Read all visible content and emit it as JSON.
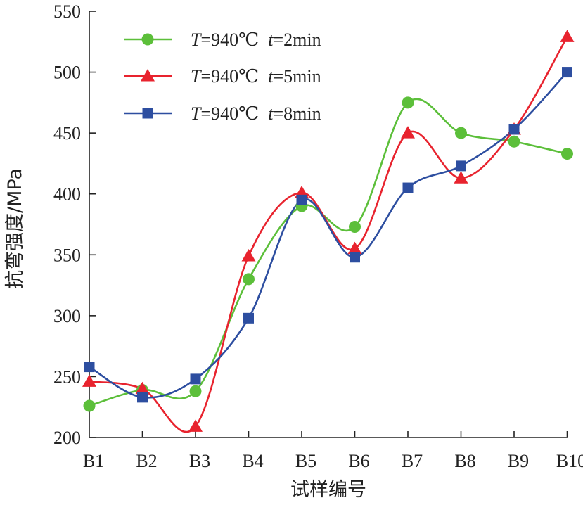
{
  "chart_data": {
    "type": "line",
    "categories": [
      "B1",
      "B2",
      "B3",
      "B4",
      "B5",
      "B6",
      "B7",
      "B8",
      "B9",
      "B10"
    ],
    "xlabel": "试样编号",
    "ylabel": "抗弯强度/MPa",
    "ylim": [
      200,
      550
    ],
    "yticks": [
      200,
      250,
      300,
      350,
      400,
      450,
      500,
      550
    ],
    "grid": false,
    "legend_position": "top-left",
    "smooth": true,
    "series": [
      {
        "name_var1": "T",
        "name_eq1": "=940℃",
        "name_var2": "t",
        "name_eq2": "=2min",
        "color": "#5cbf3a",
        "marker": "circle",
        "values": [
          226,
          239,
          238,
          330,
          390,
          373,
          475,
          450,
          443,
          433
        ]
      },
      {
        "name_var1": "T",
        "name_eq1": "=940℃",
        "name_var2": "t",
        "name_eq2": "=5min",
        "color": "#e8232e",
        "marker": "triangle",
        "values": [
          246,
          240,
          209,
          349,
          401,
          355,
          450,
          413,
          453,
          529
        ]
      },
      {
        "name_var1": "T",
        "name_eq1": "=940℃",
        "name_var2": "t",
        "name_eq2": "=8min",
        "color": "#2d4ea0",
        "marker": "square",
        "values": [
          258,
          233,
          248,
          298,
          395,
          348,
          405,
          423,
          453,
          500
        ]
      }
    ]
  }
}
